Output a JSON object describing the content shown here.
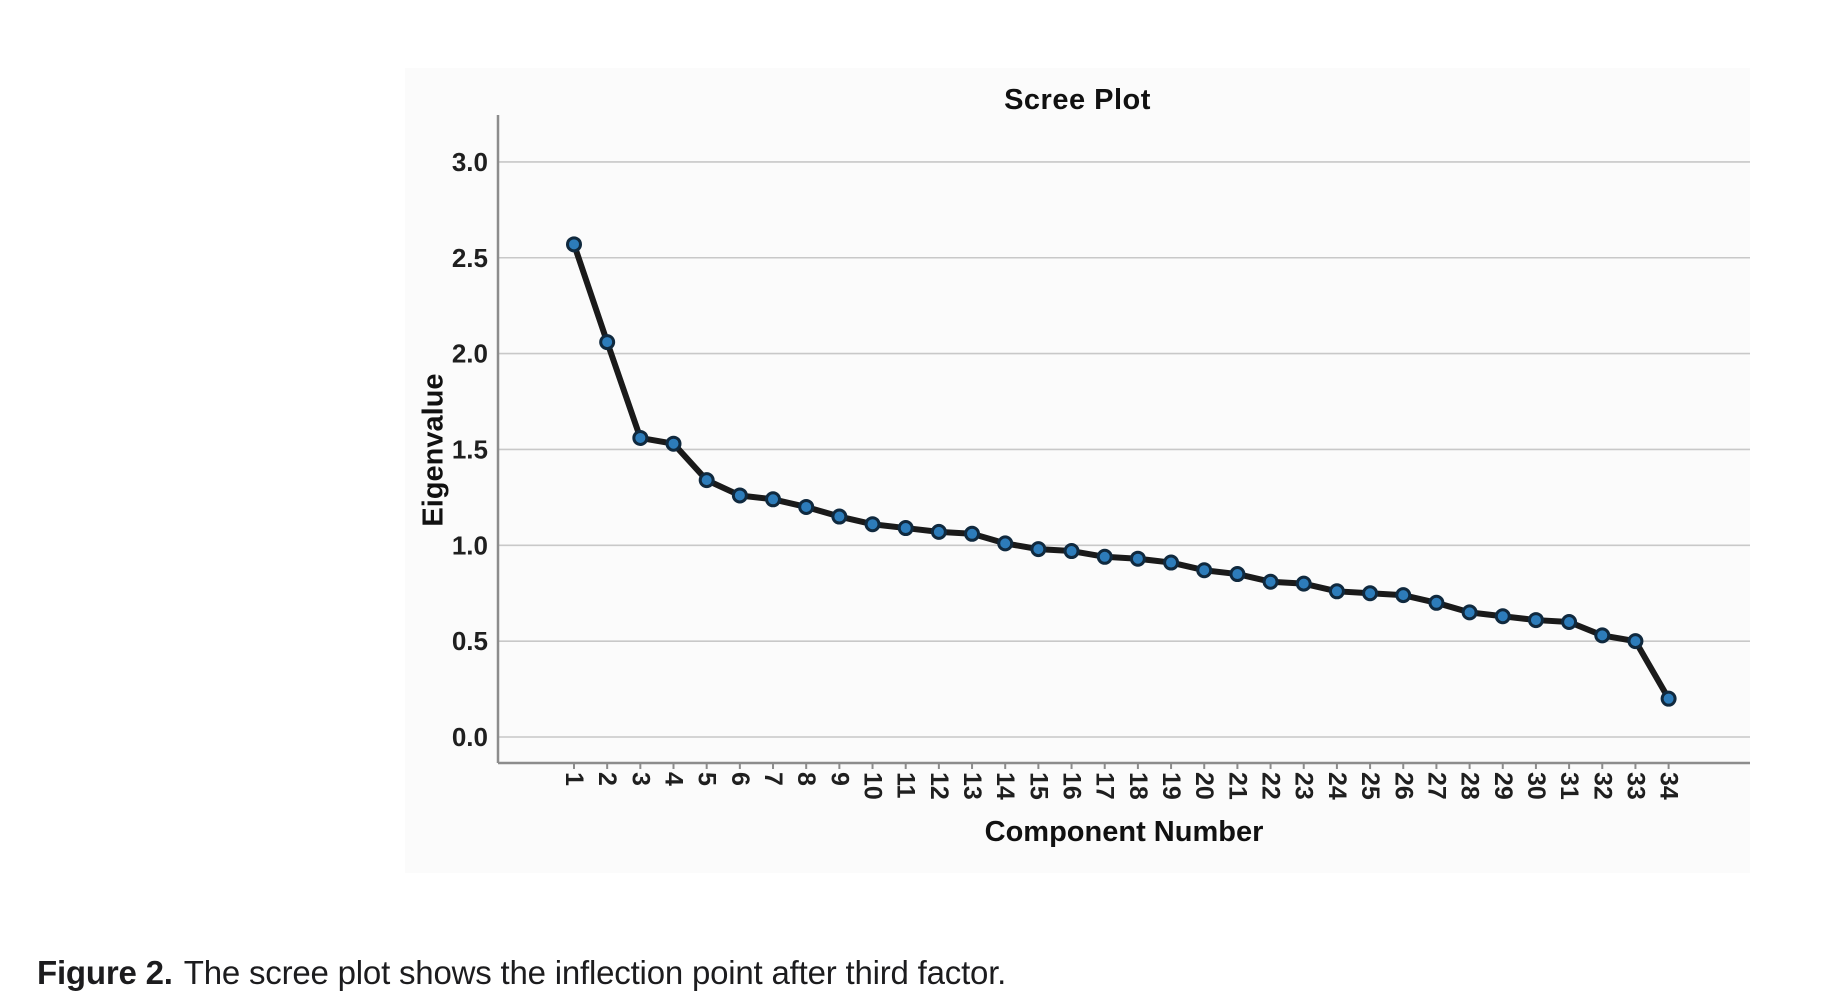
{
  "chart_data": {
    "type": "line",
    "title": "Scree Plot",
    "xlabel": "Component Number",
    "ylabel": "Eigenvalue",
    "x": [
      1,
      2,
      3,
      4,
      5,
      6,
      7,
      8,
      9,
      10,
      11,
      12,
      13,
      14,
      15,
      16,
      17,
      18,
      19,
      20,
      21,
      22,
      23,
      24,
      25,
      26,
      27,
      28,
      29,
      30,
      31,
      32,
      33,
      34
    ],
    "values": [
      2.57,
      2.06,
      1.56,
      1.53,
      1.34,
      1.26,
      1.24,
      1.2,
      1.15,
      1.11,
      1.09,
      1.07,
      1.06,
      1.01,
      0.98,
      0.97,
      0.94,
      0.93,
      0.91,
      0.87,
      0.85,
      0.81,
      0.8,
      0.76,
      0.75,
      0.74,
      0.7,
      0.65,
      0.63,
      0.61,
      0.6,
      0.53,
      0.5,
      0.2
    ],
    "ylim": [
      0.0,
      3.0
    ],
    "ytick_step": 0.5,
    "ytick_labels": [
      "0.0",
      "0.5",
      "1.0",
      "1.5",
      "2.0",
      "2.5",
      "3.0"
    ],
    "grid": true,
    "legend": "none",
    "colors": {
      "line": "#1a1a1a",
      "marker_fill": "#2d7cba",
      "marker_stroke": "#10293e",
      "grid": "#c8c8c8",
      "axis": "#8c8c8c",
      "tick_text": "#1f1f1f",
      "panel_bg": "#fbfbfb"
    }
  },
  "caption": {
    "label": "Figure 2.",
    "text": "The scree plot shows the inflection point after third factor."
  }
}
